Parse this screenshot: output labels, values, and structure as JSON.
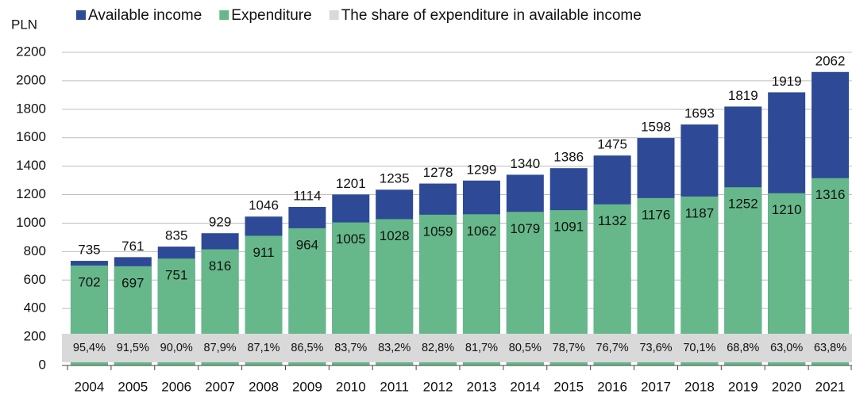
{
  "chart_data": {
    "type": "bar",
    "y_label": "PLN",
    "categories": [
      "2004",
      "2005",
      "2006",
      "2007",
      "2008",
      "2009",
      "2010",
      "2011",
      "2012",
      "2013",
      "2014",
      "2015",
      "2016",
      "2017",
      "2018",
      "2019",
      "2020",
      "2021"
    ],
    "series": [
      {
        "name": "Available income",
        "color": "#2e4a96",
        "values": [
          735,
          761,
          835,
          929,
          1046,
          1114,
          1201,
          1235,
          1278,
          1299,
          1340,
          1386,
          1475,
          1598,
          1693,
          1819,
          1919,
          2062
        ]
      },
      {
        "name": "Expenditure",
        "color": "#66b88a",
        "values": [
          702,
          697,
          751,
          816,
          911,
          964,
          1005,
          1028,
          1059,
          1062,
          1079,
          1091,
          1132,
          1176,
          1187,
          1252,
          1210,
          1316
        ]
      },
      {
        "name": "The share of expenditure in available income",
        "color": "#d9d9d9",
        "values": [
          95.4,
          91.5,
          90.0,
          87.9,
          87.1,
          86.5,
          83.7,
          83.2,
          82.8,
          81.7,
          80.5,
          78.7,
          76.7,
          73.6,
          70.1,
          68.8,
          63.0,
          63.8
        ],
        "value_labels": [
          "95,4%",
          "91,5%",
          "90,0%",
          "87,9%",
          "87,1%",
          "86,5%",
          "83,7%",
          "83,2%",
          "82,8%",
          "81,7%",
          "80,5%",
          "78,7%",
          "76,7%",
          "73,6%",
          "70,1%",
          "68,8%",
          "63,0%",
          "63,8%"
        ]
      }
    ],
    "ylim": [
      0,
      2200
    ],
    "yticks": [
      0,
      200,
      400,
      600,
      800,
      1000,
      1200,
      1400,
      1600,
      1800,
      2000,
      2200
    ],
    "grid": true,
    "legend": "top"
  }
}
